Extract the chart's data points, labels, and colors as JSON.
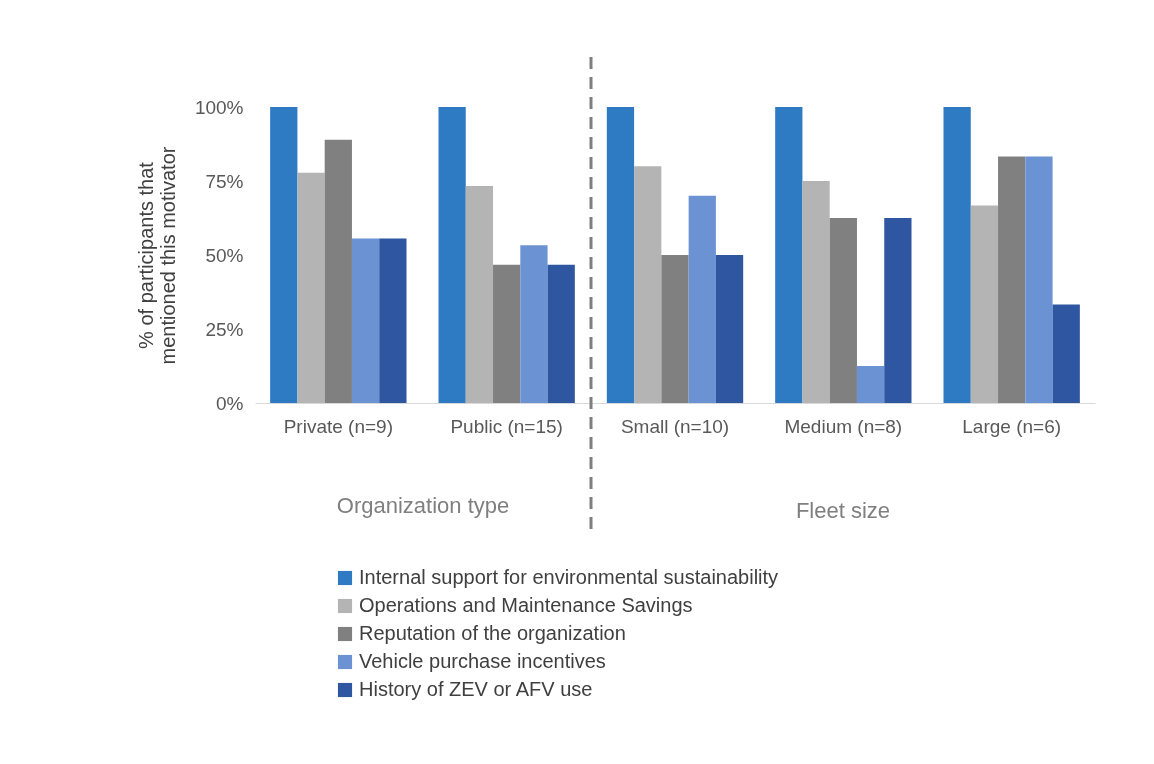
{
  "chart_data": {
    "type": "bar",
    "ylabel": "% of participants that mentioned this motivator",
    "categories": [
      "Private (n=9)",
      "Public (n=15)",
      "Small  (n=10)",
      "Medium (n=8)",
      "Large (n=6)"
    ],
    "series": [
      {
        "name": "Internal support for environmental sustainability",
        "color": "#2e7bc4",
        "values": [
          100,
          100,
          100,
          100,
          100
        ]
      },
      {
        "name": "Operations and Maintenance Savings",
        "color": "#b4b4b4",
        "values": [
          77.8,
          73.3,
          80,
          75,
          66.7
        ]
      },
      {
        "name": "Reputation of the organization",
        "color": "#808080",
        "values": [
          88.9,
          46.7,
          50,
          62.5,
          83.3
        ]
      },
      {
        "name": "Vehicle purchase incentives",
        "color": "#6b93d3",
        "values": [
          55.6,
          53.3,
          70,
          12.5,
          83.3
        ]
      },
      {
        "name": "History of ZEV or AFV use",
        "color": "#2f56a0",
        "values": [
          55.6,
          46.7,
          50,
          62.5,
          33.3
        ]
      }
    ],
    "ylim": [
      0,
      100
    ],
    "yticks": [
      {
        "value": 0,
        "label": "0%"
      },
      {
        "value": 25,
        "label": "25%"
      },
      {
        "value": 50,
        "label": "50%"
      },
      {
        "value": 75,
        "label": "75%"
      },
      {
        "value": 100,
        "label": "100%"
      }
    ],
    "annotations": [
      "Organization type",
      "Fleet size"
    ],
    "legend": "bottom",
    "grid": false
  }
}
